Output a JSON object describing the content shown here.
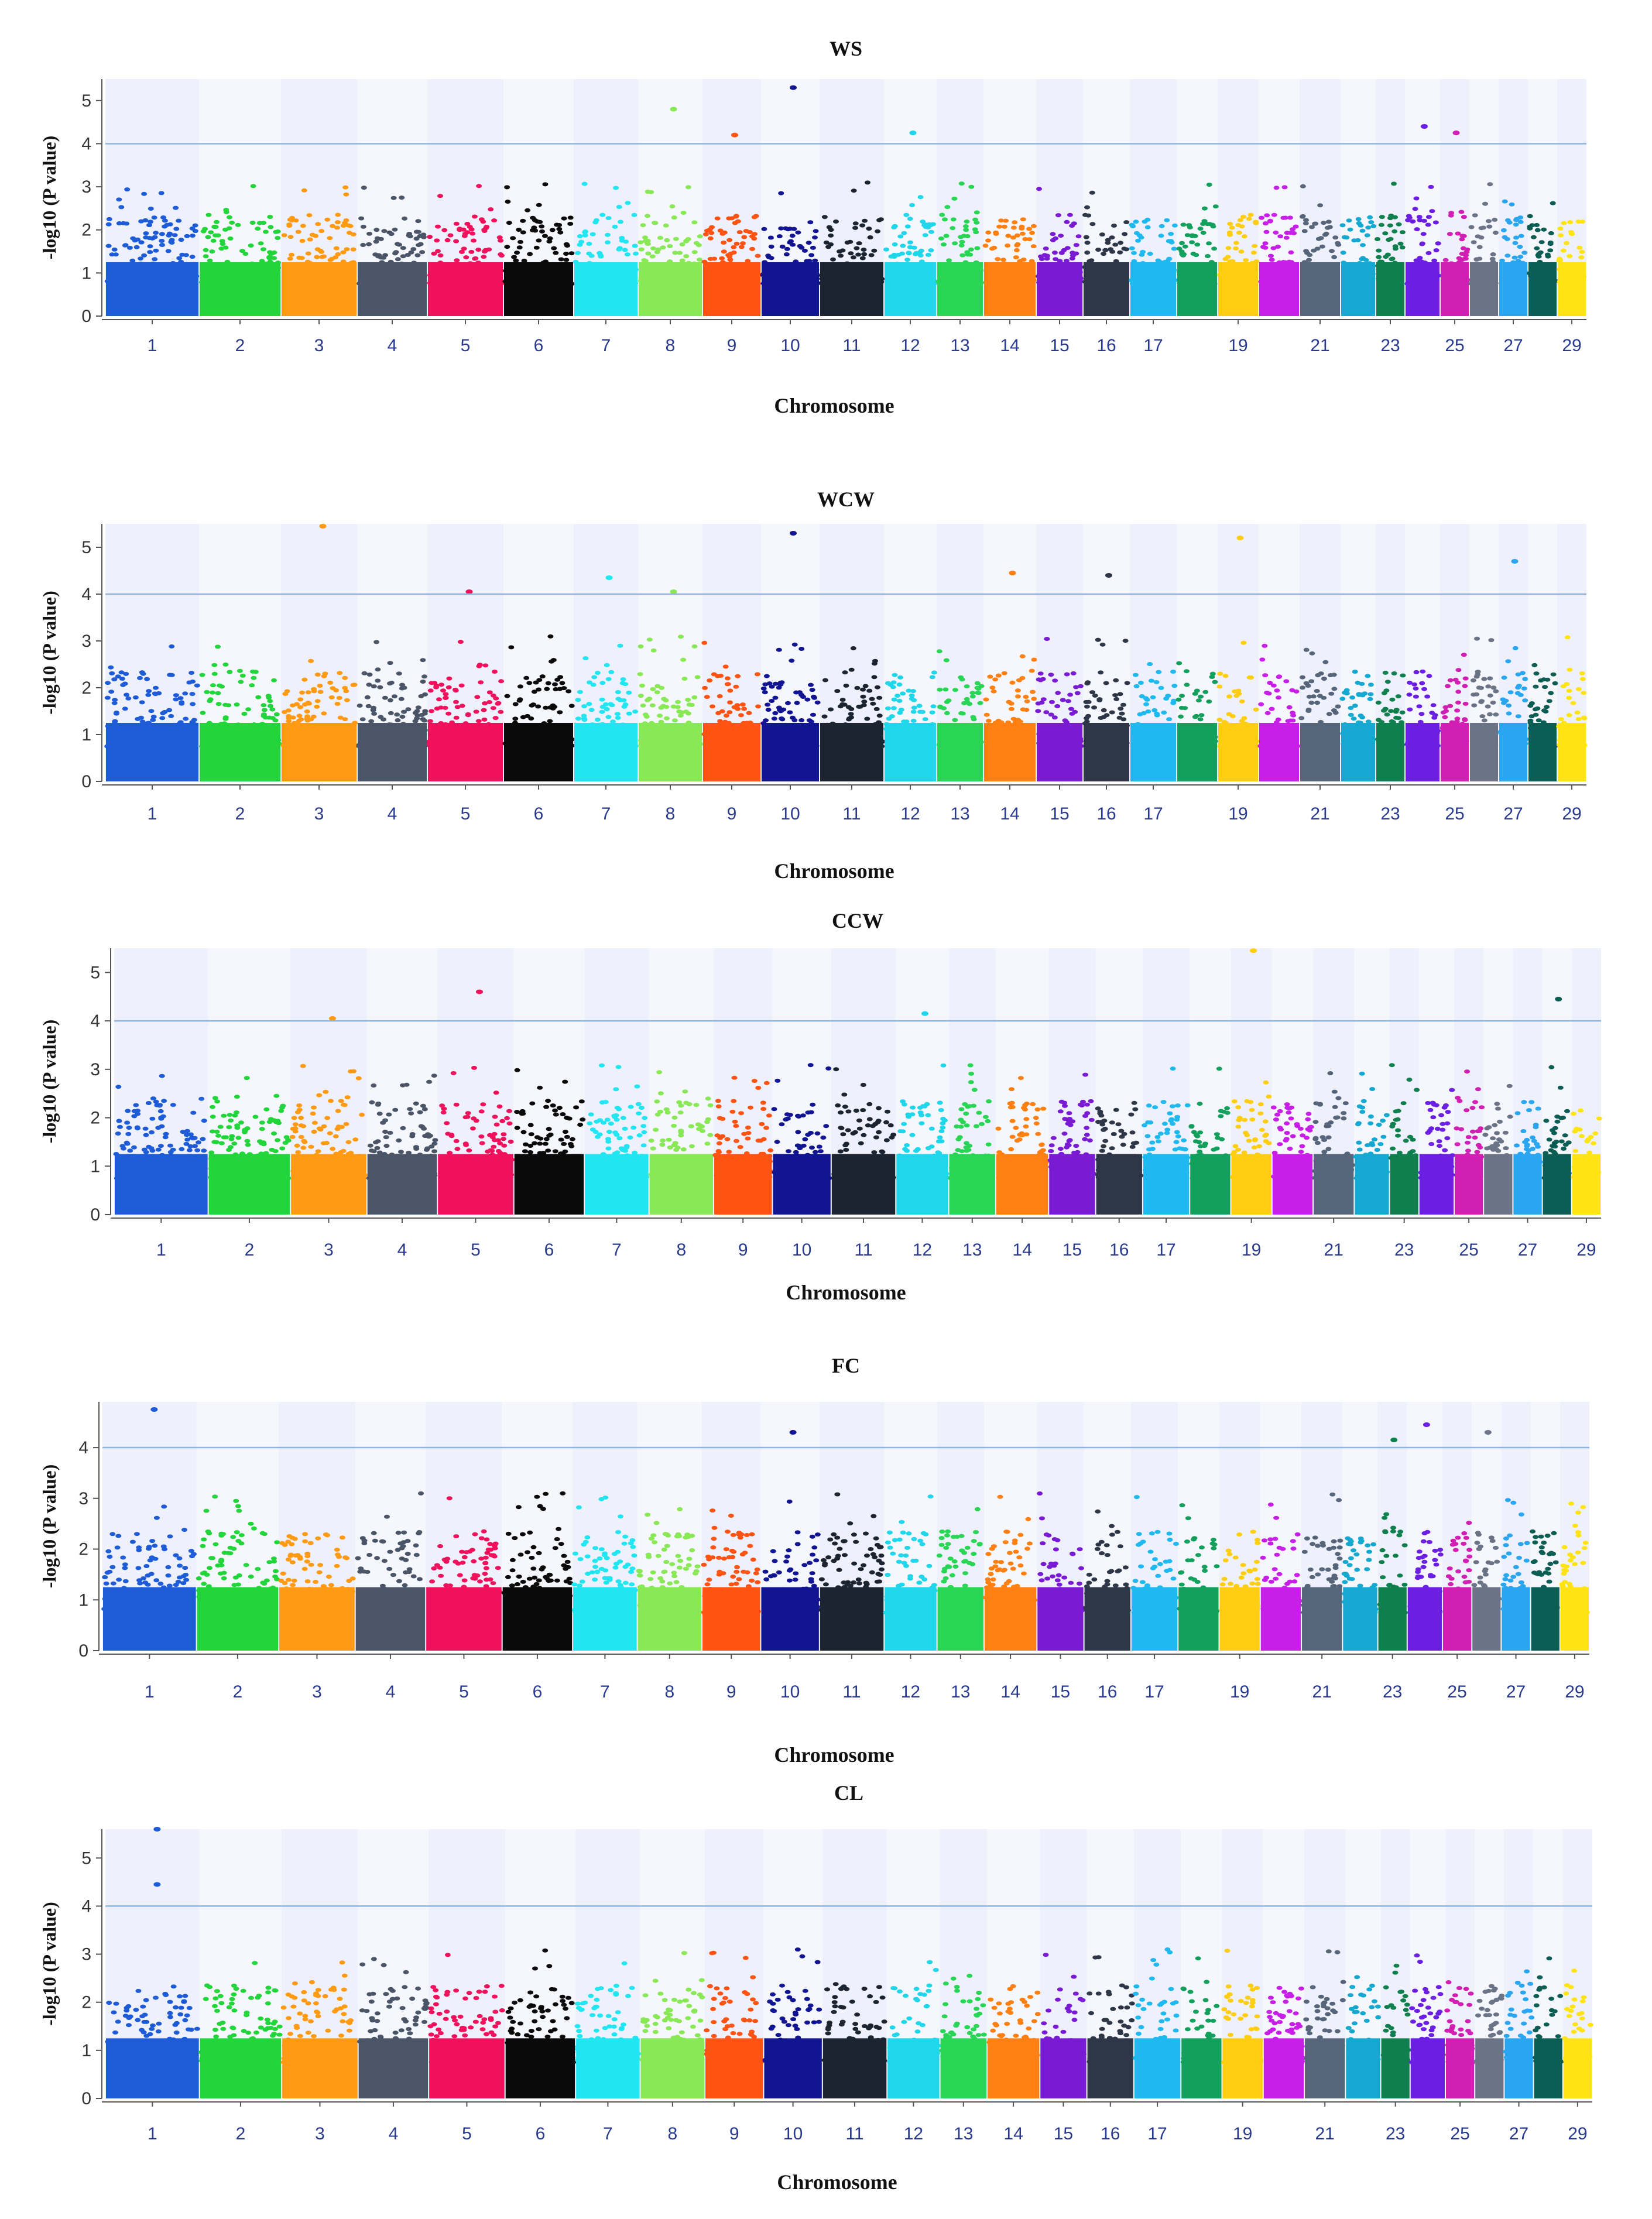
{
  "chart_data": [
    {
      "type": "scatter",
      "subtype": "manhattan",
      "title": "WS",
      "xlabel": "Chromosome",
      "ylabel": "-log10 (P value)",
      "ylim": [
        0,
        5.5
      ],
      "yticks": [
        "0",
        "1",
        "2",
        "3",
        "4",
        "5"
      ],
      "threshold": 4,
      "xtick_labels": [
        "1",
        "2",
        "3",
        "4",
        "5",
        "6",
        "7",
        "8",
        "9",
        "10",
        "11",
        "12",
        "13",
        "14",
        "15",
        "16",
        "17",
        "19",
        "21",
        "23",
        "25",
        "27",
        "29"
      ],
      "peaks": [
        {
          "chromosome": 8,
          "value": 4.8
        },
        {
          "chromosome": 9,
          "value": 4.2
        },
        {
          "chromosome": 10,
          "value": 5.3
        },
        {
          "chromosome": 12,
          "value": 4.25
        },
        {
          "chromosome": 24,
          "value": 4.4
        },
        {
          "chromosome": 25,
          "value": 4.25
        }
      ]
    },
    {
      "type": "scatter",
      "subtype": "manhattan",
      "title": "WCW",
      "xlabel": "Chromosome",
      "ylabel": "-log10 (P value)",
      "ylim": [
        0,
        5.5
      ],
      "yticks": [
        "0",
        "1",
        "2",
        "3",
        "4",
        "5"
      ],
      "threshold": 4,
      "xtick_labels": [
        "1",
        "2",
        "3",
        "4",
        "5",
        "6",
        "7",
        "8",
        "9",
        "10",
        "11",
        "12",
        "13",
        "14",
        "15",
        "16",
        "17",
        "19",
        "21",
        "23",
        "25",
        "27",
        "29"
      ],
      "peaks": [
        {
          "chromosome": 3,
          "value": 5.45
        },
        {
          "chromosome": 5,
          "value": 4.05
        },
        {
          "chromosome": 7,
          "value": 4.35
        },
        {
          "chromosome": 8,
          "value": 4.05
        },
        {
          "chromosome": 10,
          "value": 5.3
        },
        {
          "chromosome": 14,
          "value": 4.45
        },
        {
          "chromosome": 16,
          "value": 4.4
        },
        {
          "chromosome": 19,
          "value": 5.2
        },
        {
          "chromosome": 27,
          "value": 4.7
        }
      ]
    },
    {
      "type": "scatter",
      "subtype": "manhattan",
      "title": "CCW",
      "xlabel": "Chromosome",
      "ylabel": "-log10 (P value)",
      "ylim": [
        0,
        5.5
      ],
      "yticks": [
        "0",
        "1",
        "2",
        "3",
        "4",
        "5"
      ],
      "threshold": 4,
      "xtick_labels": [
        "1",
        "2",
        "3",
        "4",
        "5",
        "6",
        "7",
        "8",
        "9",
        "10",
        "11",
        "12",
        "13",
        "14",
        "15",
        "16",
        "17",
        "19",
        "21",
        "23",
        "25",
        "27",
        "29"
      ],
      "peaks": [
        {
          "chromosome": 3,
          "value": 4.05
        },
        {
          "chromosome": 5,
          "value": 4.6
        },
        {
          "chromosome": 12,
          "value": 4.15
        },
        {
          "chromosome": 19,
          "value": 5.45
        },
        {
          "chromosome": 28,
          "value": 4.45
        }
      ]
    },
    {
      "type": "scatter",
      "subtype": "manhattan",
      "title": "FC",
      "xlabel": "Chromosome",
      "ylabel": "-log10 (P value)",
      "ylim": [
        0,
        4.9
      ],
      "yticks": [
        "0",
        "1",
        "2",
        "3",
        "4"
      ],
      "threshold": 4,
      "xtick_labels": [
        "1",
        "2",
        "3",
        "4",
        "5",
        "6",
        "7",
        "8",
        "9",
        "10",
        "11",
        "12",
        "13",
        "14",
        "15",
        "16",
        "17",
        "19",
        "21",
        "23",
        "25",
        "27",
        "29"
      ],
      "peaks": [
        {
          "chromosome": 1,
          "value": 4.75
        },
        {
          "chromosome": 10,
          "value": 4.3
        },
        {
          "chromosome": 23,
          "value": 4.15
        },
        {
          "chromosome": 24,
          "value": 4.45
        },
        {
          "chromosome": 26,
          "value": 4.3
        }
      ]
    },
    {
      "type": "scatter",
      "subtype": "manhattan",
      "title": "CL",
      "xlabel": "Chromosome",
      "ylabel": "-log10 (P value)",
      "ylim": [
        0,
        5.6
      ],
      "yticks": [
        "0",
        "1",
        "2",
        "3",
        "4",
        "5"
      ],
      "threshold": 4,
      "xtick_labels": [
        "1",
        "2",
        "3",
        "4",
        "5",
        "6",
        "7",
        "8",
        "9",
        "10",
        "11",
        "12",
        "13",
        "14",
        "15",
        "16",
        "17",
        "19",
        "21",
        "23",
        "25",
        "27",
        "29"
      ],
      "peaks": [
        {
          "chromosome": 1,
          "value": 5.6
        },
        {
          "chromosome": 1,
          "value": 4.45
        }
      ]
    }
  ],
  "chromosome_colors": [
    "#1e5bd7",
    "#22d53a",
    "#ff9a12",
    "#4a5568",
    "#f0115c",
    "#0a0a0a",
    "#22e5f2",
    "#88e855",
    "#ff5314",
    "#121592",
    "#1c2431",
    "#1fd6ea",
    "#29d555",
    "#ff8012",
    "#7a1bd4",
    "#2d3748",
    "#1fb9f0",
    "#12a05c",
    "#ffce12",
    "#c71fe8",
    "#56657a",
    "#15a9d2",
    "#0f7f4e",
    "#6a1fe3",
    "#d21fb3",
    "#6b7486",
    "#2aa6f0",
    "#0c5d53",
    "#ffe312"
  ]
}
